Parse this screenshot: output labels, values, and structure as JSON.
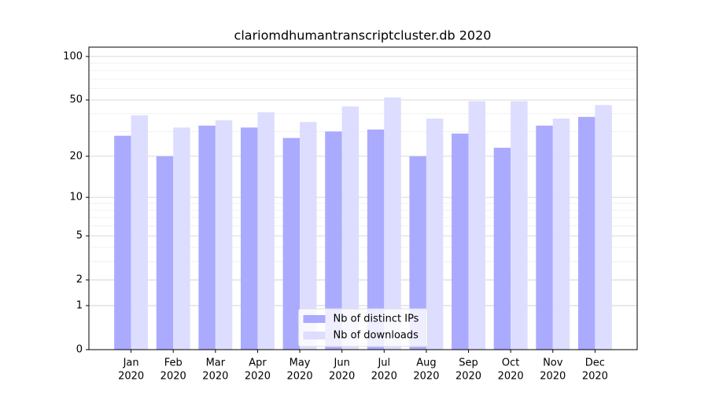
{
  "chart_data": {
    "type": "bar",
    "title": "clariomdhumantranscriptcluster.db 2020",
    "categories": [
      [
        "Jan",
        "2020"
      ],
      [
        "Feb",
        "2020"
      ],
      [
        "Mar",
        "2020"
      ],
      [
        "Apr",
        "2020"
      ],
      [
        "May",
        "2020"
      ],
      [
        "Jun",
        "2020"
      ],
      [
        "Jul",
        "2020"
      ],
      [
        "Aug",
        "2020"
      ],
      [
        "Sep",
        "2020"
      ],
      [
        "Oct",
        "2020"
      ],
      [
        "Nov",
        "2020"
      ],
      [
        "Dec",
        "2020"
      ]
    ],
    "series": [
      {
        "name": "Nb of distinct IPs",
        "color": "#aaaaff",
        "values": [
          28,
          20,
          33,
          32,
          27,
          30,
          31,
          20,
          29,
          23,
          33,
          38
        ]
      },
      {
        "name": "Nb of downloads",
        "color": "#ddddff",
        "values": [
          39,
          32,
          36,
          41,
          35,
          45,
          52,
          37,
          49,
          49,
          37,
          46
        ]
      }
    ],
    "yscale": "log1p",
    "ylim": [
      0,
      116
    ],
    "yticks": [
      0,
      1,
      2,
      5,
      10,
      20,
      50,
      100
    ],
    "minor_yticks": [
      3,
      4,
      6,
      7,
      8,
      9,
      30,
      40,
      60,
      70,
      80,
      90
    ],
    "grid": true,
    "legend": "lower center"
  }
}
